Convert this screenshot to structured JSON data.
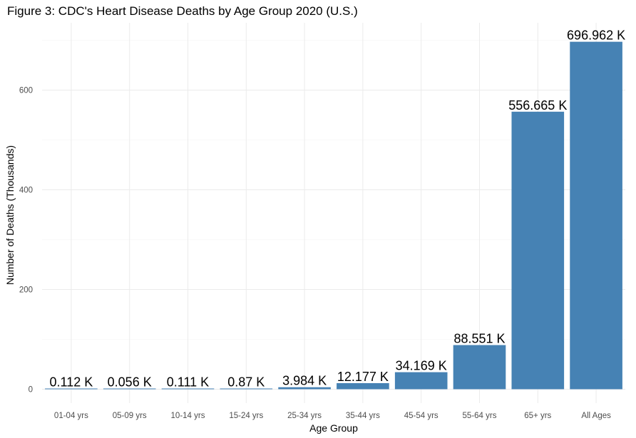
{
  "chart_data": {
    "type": "bar",
    "title": "Figure 3: CDC's Heart Disease Deaths by Age Group 2020 (U.S.)",
    "xlabel": "Age Group",
    "ylabel": "Number of Deaths (Thousands)",
    "categories": [
      "01-04 yrs",
      "05-09 yrs",
      "10-14 yrs",
      "15-24 yrs",
      "25-34 yrs",
      "35-44 yrs",
      "45-54 yrs",
      "55-64 yrs",
      "65+ yrs",
      "All Ages"
    ],
    "values": [
      0.112,
      0.056,
      0.111,
      0.87,
      3.984,
      12.177,
      34.169,
      88.551,
      556.665,
      696.962
    ],
    "data_labels": [
      "0.112 K",
      "0.056 K",
      "0.111 K",
      "0.87 K",
      "3.984 K",
      "12.177 K",
      "34.169 K",
      "88.551 K",
      "556.665 K",
      "696.962 K"
    ],
    "yticks": [
      0,
      200,
      400,
      600
    ],
    "ylim": [
      0,
      730
    ],
    "grid": true,
    "bar_color": "#4682B4"
  }
}
